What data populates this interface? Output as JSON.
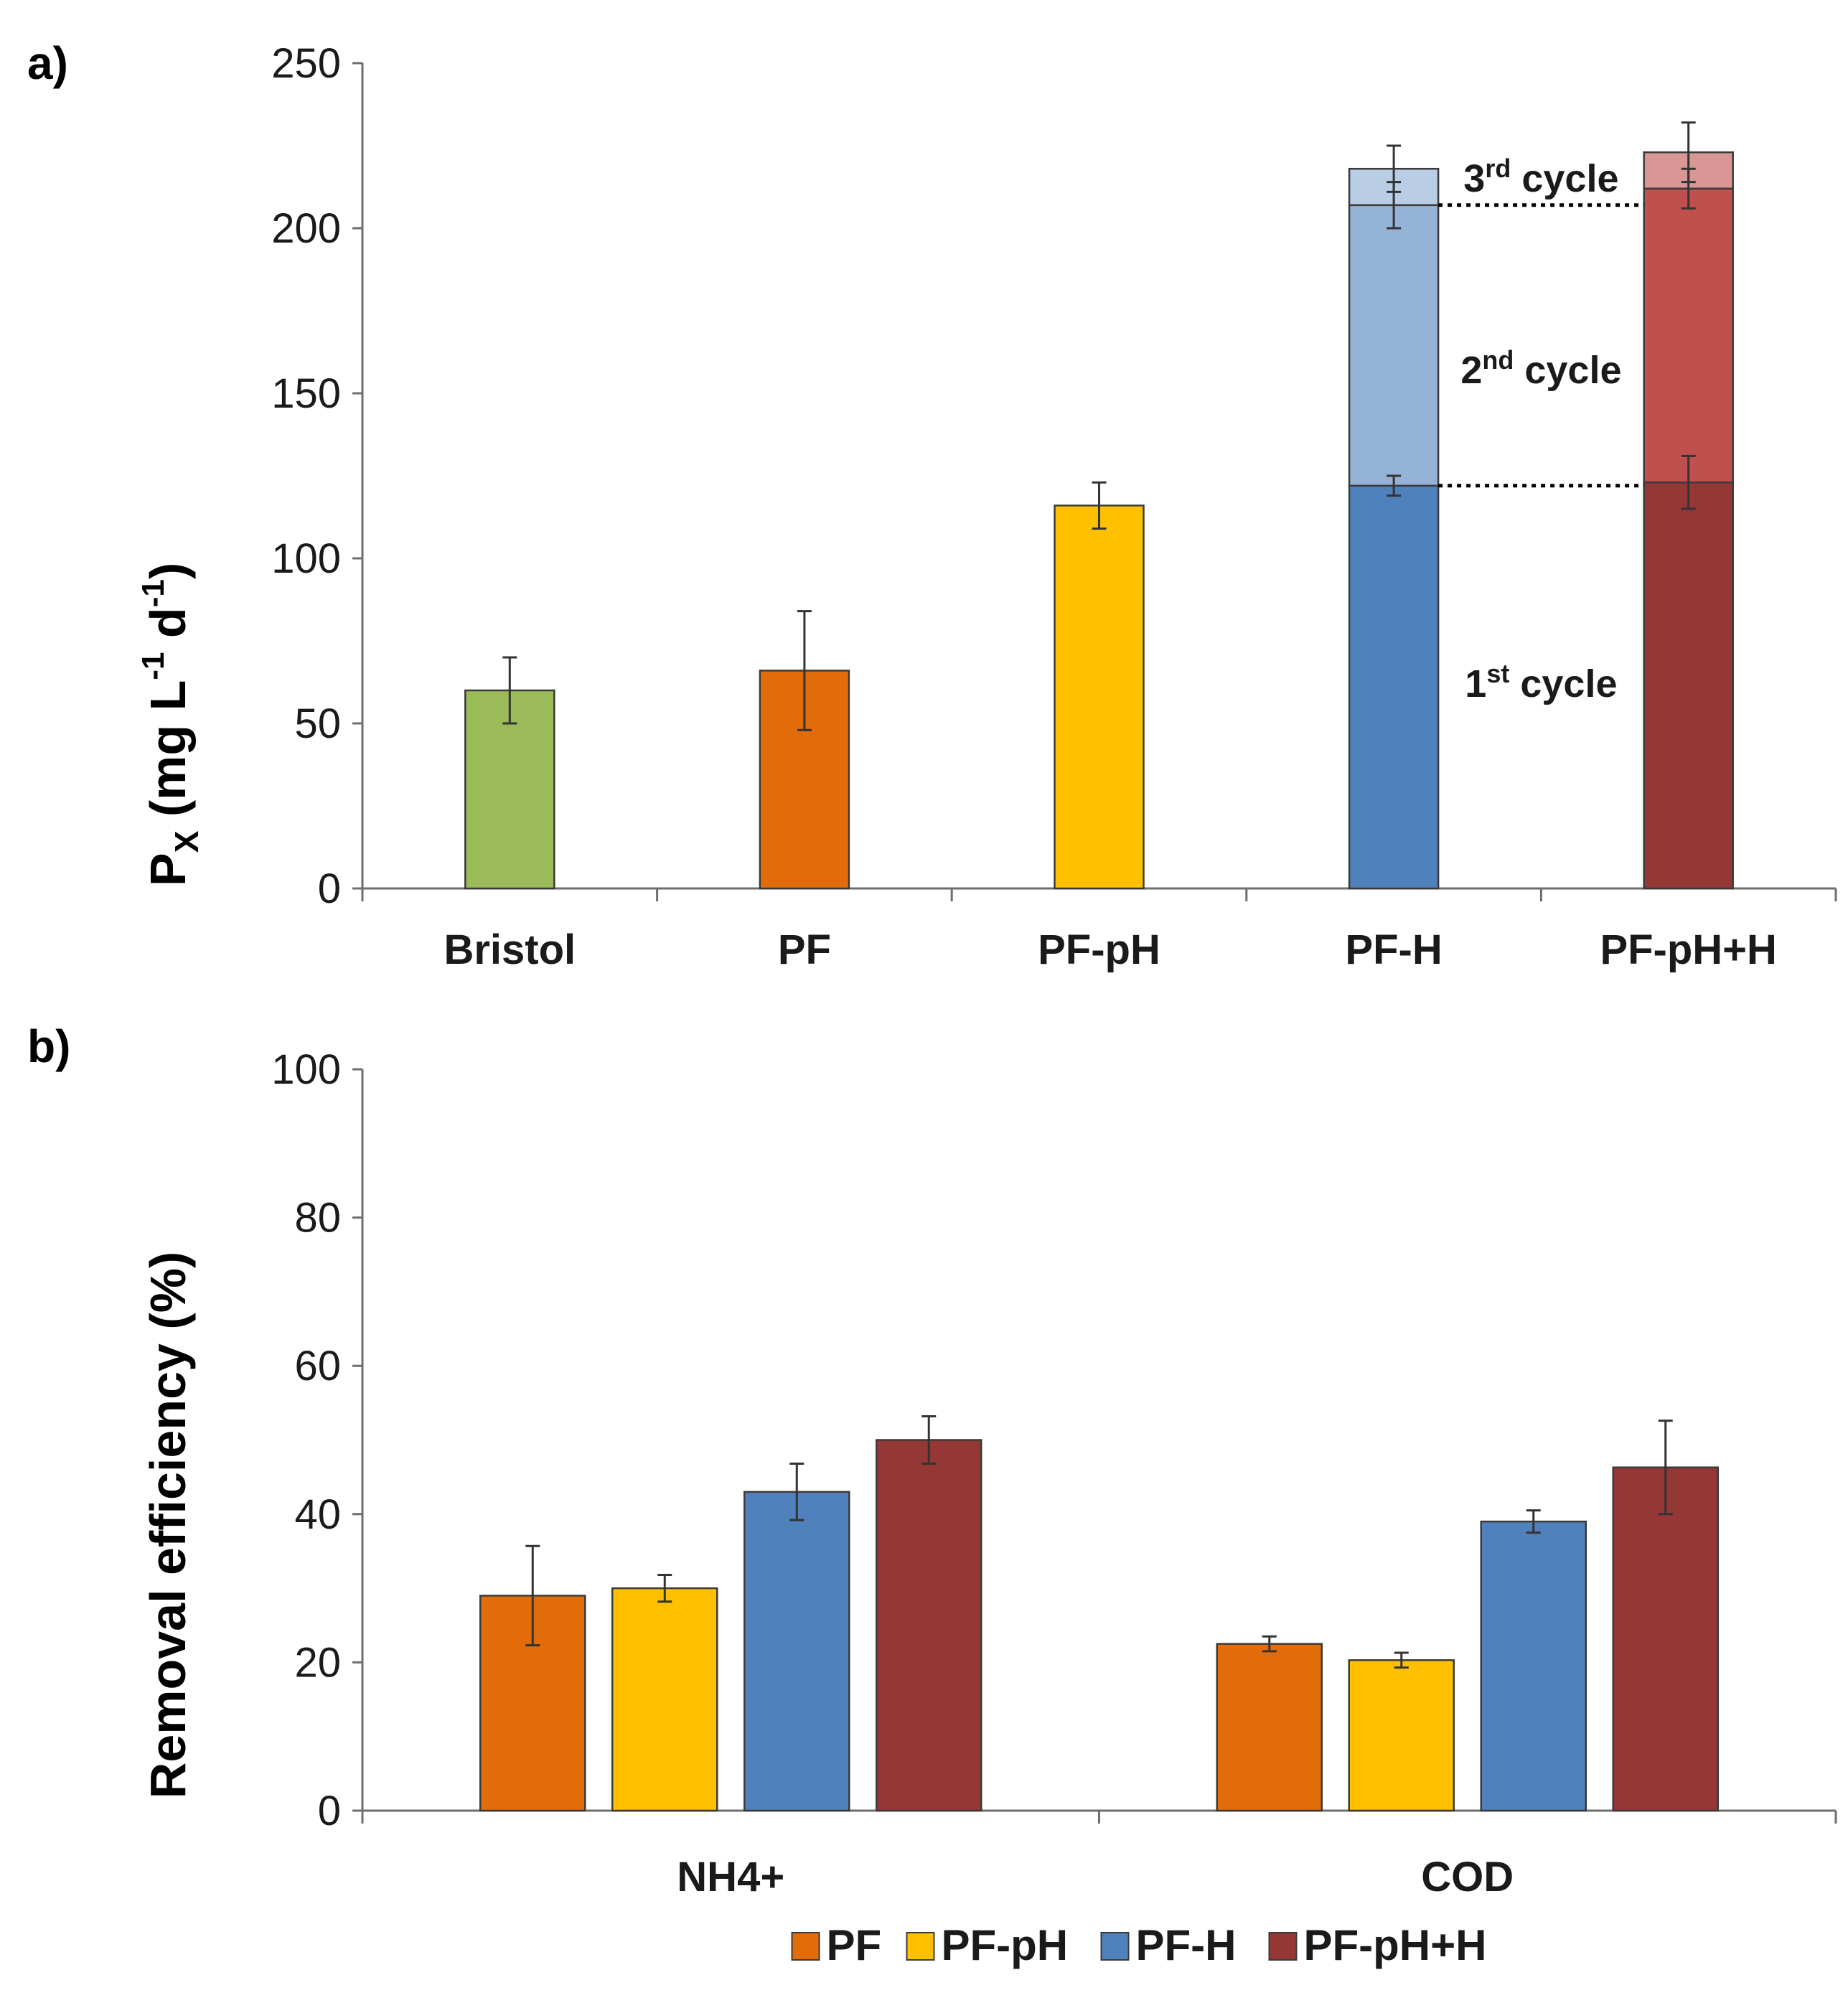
{
  "chart_data": [
    {
      "panel_label": "a)",
      "type": "bar",
      "stacked": true,
      "ylabel": {
        "main": "P",
        "sub": "X",
        "rest": " (mg L",
        "exp1": "-1",
        "mid": " d",
        "exp2": "-1",
        "end": ")"
      },
      "ylim": [
        0,
        250
      ],
      "yticks": [
        0,
        50,
        100,
        150,
        200,
        250
      ],
      "categories": [
        "Bristol",
        "PF",
        "PF-pH",
        "PF-H",
        "PF-pH+H"
      ],
      "bars": [
        {
          "category": "Bristol",
          "color": "#9bbb59",
          "segments": [
            {
              "value": 60,
              "err": 10,
              "color": "#9bbb59"
            }
          ]
        },
        {
          "category": "PF",
          "color": "#e36c0a",
          "segments": [
            {
              "value": 66,
              "err": 18,
              "color": "#e36c0a"
            }
          ]
        },
        {
          "category": "PF-pH",
          "color": "#ffc000",
          "segments": [
            {
              "value": 116,
              "err": 7,
              "color": "#ffc000"
            }
          ]
        },
        {
          "category": "PF-H",
          "color": "#4f81bd",
          "segments": [
            {
              "name": "1st cycle",
              "value": 122,
              "err": 3,
              "color": "#4f81bd"
            },
            {
              "name": "2nd cycle",
              "value": 85,
              "err": 7,
              "color": "#95b3d7"
            },
            {
              "name": "3rd cycle",
              "value": 11,
              "err": 7,
              "color": "#b9cde5"
            }
          ]
        },
        {
          "category": "PF-pH+H",
          "color": "#953735",
          "segments": [
            {
              "name": "1st cycle",
              "value": 123,
              "err": 8,
              "color": "#953735"
            },
            {
              "name": "2nd cycle",
              "value": 89,
              "err": 6,
              "color": "#c0504d"
            },
            {
              "name": "3rd cycle",
              "value": 11,
              "err": 9,
              "color": "#d99694"
            }
          ]
        }
      ],
      "annotations": [
        {
          "base": "1",
          "sup": "st",
          "text": " cycle",
          "at_value": 62
        },
        {
          "base": "2",
          "sup": "nd",
          "text": " cycle",
          "at_value": 157
        },
        {
          "base": "3",
          "sup": "rd",
          "text": " cycle",
          "at_value": 215
        }
      ],
      "dotted_lines_at": [
        122,
        207
      ]
    },
    {
      "panel_label": "b)",
      "type": "bar",
      "grouped": true,
      "ylabel": "Removal efficiency (%)",
      "ylim": [
        0,
        100
      ],
      "yticks": [
        0,
        20,
        40,
        60,
        80,
        100
      ],
      "categories": [
        "NH4+",
        "COD"
      ],
      "series": [
        {
          "name": "PF",
          "color": "#e36c0a",
          "values": [
            29,
            22.5
          ],
          "errors": [
            6.7,
            1
          ]
        },
        {
          "name": "PF-pH",
          "color": "#ffc000",
          "values": [
            30,
            20.3
          ],
          "errors": [
            1.8,
            1
          ]
        },
        {
          "name": "PF-H",
          "color": "#4f81bd",
          "values": [
            43,
            39
          ],
          "errors": [
            3.8,
            1.5
          ]
        },
        {
          "name": "PF-pH+H",
          "color": "#953735",
          "values": [
            50,
            46.3
          ],
          "errors": [
            3.2,
            6.3
          ]
        }
      ],
      "legend": [
        "PF",
        "PF-pH",
        "PF-H",
        "PF-pH+H"
      ],
      "legend_position": "bottom-center"
    }
  ]
}
